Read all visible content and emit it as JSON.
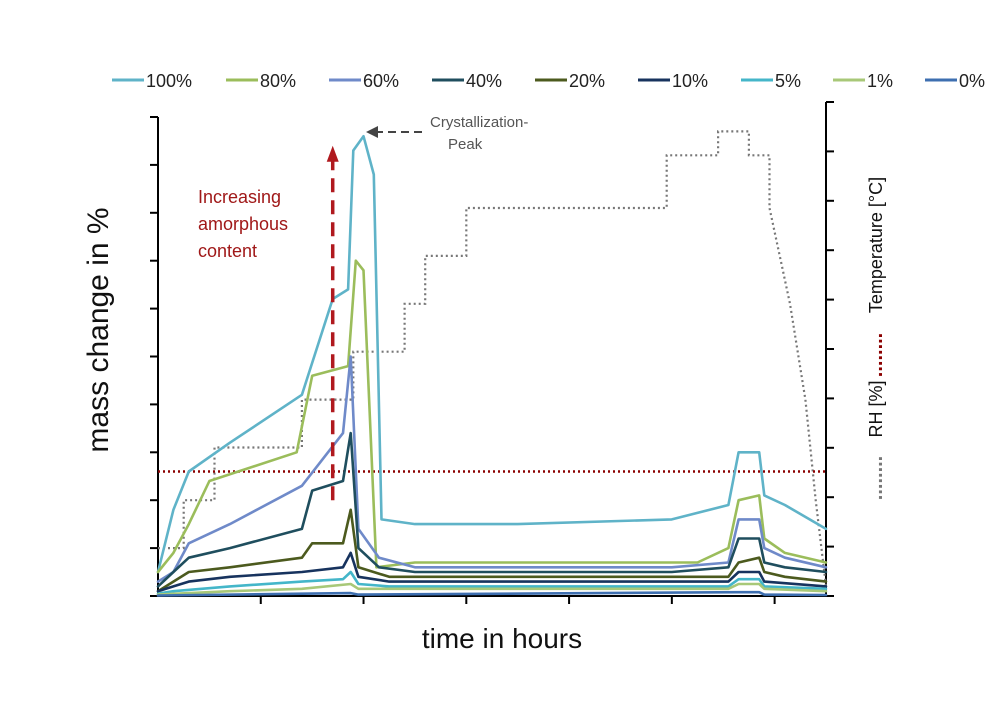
{
  "chart_data": {
    "type": "line",
    "title": "",
    "xlabel": "time in hours",
    "ylabel": "mass change in %",
    "y2label_temperature": "Temperature [°C]",
    "y2label_rh": "RH [%]",
    "temperature_marker": "........",
    "rh_marker": "........",
    "annotations": {
      "peak_line1": "Crystallization-",
      "peak_line2": "Peak",
      "arrow_line1": "Increasing",
      "arrow_line2": "amorphous",
      "arrow_line3": "content"
    },
    "legend_position": "top",
    "grid": false,
    "x_range": [
      0,
      13
    ],
    "y_range": [
      0,
      100
    ],
    "y2_range": [
      0,
      100
    ],
    "series": [
      {
        "name": "100%",
        "color": "#5fb3c8",
        "values": [
          [
            0,
            5
          ],
          [
            0.3,
            18
          ],
          [
            0.6,
            26
          ],
          [
            1.4,
            32
          ],
          [
            2.8,
            42
          ],
          [
            3.4,
            62
          ],
          [
            3.7,
            64
          ],
          [
            3.8,
            93
          ],
          [
            4.0,
            96
          ],
          [
            4.2,
            88
          ],
          [
            4.35,
            16
          ],
          [
            5,
            15
          ],
          [
            7,
            15
          ],
          [
            10,
            16
          ],
          [
            11.1,
            19
          ],
          [
            11.3,
            30
          ],
          [
            11.7,
            30
          ],
          [
            11.8,
            21
          ],
          [
            12.2,
            19
          ],
          [
            13,
            14
          ]
        ]
      },
      {
        "name": "80%",
        "color": "#9bbd5b",
        "values": [
          [
            0,
            5
          ],
          [
            0.3,
            9
          ],
          [
            0.6,
            15
          ],
          [
            1.0,
            24
          ],
          [
            2.7,
            30
          ],
          [
            3.0,
            46
          ],
          [
            3.7,
            48
          ],
          [
            3.85,
            70
          ],
          [
            4.0,
            68
          ],
          [
            4.25,
            6
          ],
          [
            5,
            7
          ],
          [
            10.5,
            7
          ],
          [
            11.1,
            10
          ],
          [
            11.3,
            20
          ],
          [
            11.7,
            21
          ],
          [
            11.8,
            12
          ],
          [
            12.2,
            9
          ],
          [
            13,
            7
          ]
        ]
      },
      {
        "name": "60%",
        "color": "#6f8ac9",
        "values": [
          [
            0,
            3
          ],
          [
            0.3,
            5
          ],
          [
            0.6,
            11
          ],
          [
            1.4,
            15
          ],
          [
            2.8,
            23
          ],
          [
            3.6,
            34
          ],
          [
            3.75,
            50
          ],
          [
            3.9,
            14
          ],
          [
            4.3,
            8
          ],
          [
            5,
            6
          ],
          [
            10,
            6
          ],
          [
            11.1,
            7
          ],
          [
            11.3,
            16
          ],
          [
            11.7,
            16
          ],
          [
            11.8,
            10
          ],
          [
            12.2,
            8
          ],
          [
            13,
            6
          ]
        ]
      },
      {
        "name": "40%",
        "color": "#1f4e5e",
        "values": [
          [
            0,
            2
          ],
          [
            0.3,
            5
          ],
          [
            0.6,
            8
          ],
          [
            1.4,
            10
          ],
          [
            2.8,
            14
          ],
          [
            3.0,
            22
          ],
          [
            3.6,
            24
          ],
          [
            3.75,
            34
          ],
          [
            3.9,
            10
          ],
          [
            4.3,
            6
          ],
          [
            5,
            5
          ],
          [
            10,
            5
          ],
          [
            11.1,
            6
          ],
          [
            11.3,
            12
          ],
          [
            11.7,
            12
          ],
          [
            11.8,
            7
          ],
          [
            12.2,
            6
          ],
          [
            13,
            5
          ]
        ]
      },
      {
        "name": "20%",
        "color": "#4c5a1e",
        "values": [
          [
            0,
            1
          ],
          [
            0.3,
            3
          ],
          [
            0.6,
            5
          ],
          [
            1.4,
            6
          ],
          [
            2.8,
            8
          ],
          [
            3.0,
            11
          ],
          [
            3.6,
            11
          ],
          [
            3.75,
            18
          ],
          [
            3.9,
            6
          ],
          [
            4.5,
            4
          ],
          [
            10,
            4
          ],
          [
            11.1,
            4
          ],
          [
            11.3,
            7
          ],
          [
            11.7,
            8
          ],
          [
            11.8,
            5
          ],
          [
            12.2,
            4
          ],
          [
            13,
            3
          ]
        ]
      },
      {
        "name": "10%",
        "color": "#17335e",
        "values": [
          [
            0,
            1
          ],
          [
            0.3,
            2
          ],
          [
            0.6,
            3
          ],
          [
            1.4,
            4
          ],
          [
            2.8,
            5
          ],
          [
            3.6,
            6
          ],
          [
            3.75,
            9
          ],
          [
            3.9,
            4
          ],
          [
            4.5,
            3
          ],
          [
            10,
            3
          ],
          [
            11.1,
            3
          ],
          [
            11.3,
            5
          ],
          [
            11.7,
            5
          ],
          [
            11.8,
            3
          ],
          [
            13,
            2
          ]
        ]
      },
      {
        "name": "5%",
        "color": "#44b6c9",
        "values": [
          [
            0,
            0.5
          ],
          [
            0.3,
            1
          ],
          [
            1.4,
            2
          ],
          [
            2.8,
            3
          ],
          [
            3.6,
            3.5
          ],
          [
            3.75,
            5
          ],
          [
            3.9,
            2.5
          ],
          [
            4.5,
            2
          ],
          [
            11.1,
            2
          ],
          [
            11.3,
            3.5
          ],
          [
            11.7,
            3.5
          ],
          [
            11.8,
            2
          ],
          [
            13,
            1.5
          ]
        ]
      },
      {
        "name": "1%",
        "color": "#a8c878",
        "values": [
          [
            0,
            0.3
          ],
          [
            1.4,
            1
          ],
          [
            2.8,
            1.5
          ],
          [
            3.75,
            2.5
          ],
          [
            3.9,
            1.5
          ],
          [
            11.1,
            1.5
          ],
          [
            11.3,
            2.5
          ],
          [
            11.7,
            2.5
          ],
          [
            11.8,
            1.5
          ],
          [
            13,
            1
          ]
        ]
      },
      {
        "name": "0%",
        "color": "#3e6fb0",
        "values": [
          [
            0,
            0.1
          ],
          [
            3.75,
            0.6
          ],
          [
            3.9,
            0.3
          ],
          [
            11.3,
            0.8
          ],
          [
            11.7,
            0.8
          ],
          [
            11.8,
            0.3
          ],
          [
            13,
            0.2
          ]
        ]
      }
    ],
    "rh_series": {
      "name": "RH [%]",
      "color": "#777777",
      "values": [
        [
          0,
          10
        ],
        [
          0.5,
          10
        ],
        [
          0.5,
          20
        ],
        [
          1.1,
          20
        ],
        [
          1.1,
          31
        ],
        [
          2.8,
          31
        ],
        [
          2.8,
          41
        ],
        [
          3.8,
          41
        ],
        [
          3.8,
          51
        ],
        [
          4.8,
          51
        ],
        [
          4.8,
          61
        ],
        [
          5.2,
          61
        ],
        [
          5.2,
          71
        ],
        [
          6.0,
          71
        ],
        [
          6.0,
          81
        ],
        [
          9.9,
          81
        ],
        [
          9.9,
          92
        ],
        [
          10.9,
          92
        ],
        [
          10.9,
          97
        ],
        [
          11.5,
          97
        ],
        [
          11.5,
          92
        ],
        [
          11.9,
          92
        ],
        [
          11.9,
          81
        ],
        [
          12.3,
          61
        ],
        [
          12.6,
          41
        ],
        [
          12.8,
          20
        ],
        [
          13,
          2
        ]
      ]
    },
    "temperature_series": {
      "name": "Temperature [°C]",
      "color": "#8b0000",
      "values": [
        [
          0,
          26
        ],
        [
          13,
          26
        ]
      ]
    },
    "arrow": {
      "x": 3.4,
      "y_from": 20,
      "y_to": 94,
      "color": "#b0191e"
    }
  }
}
